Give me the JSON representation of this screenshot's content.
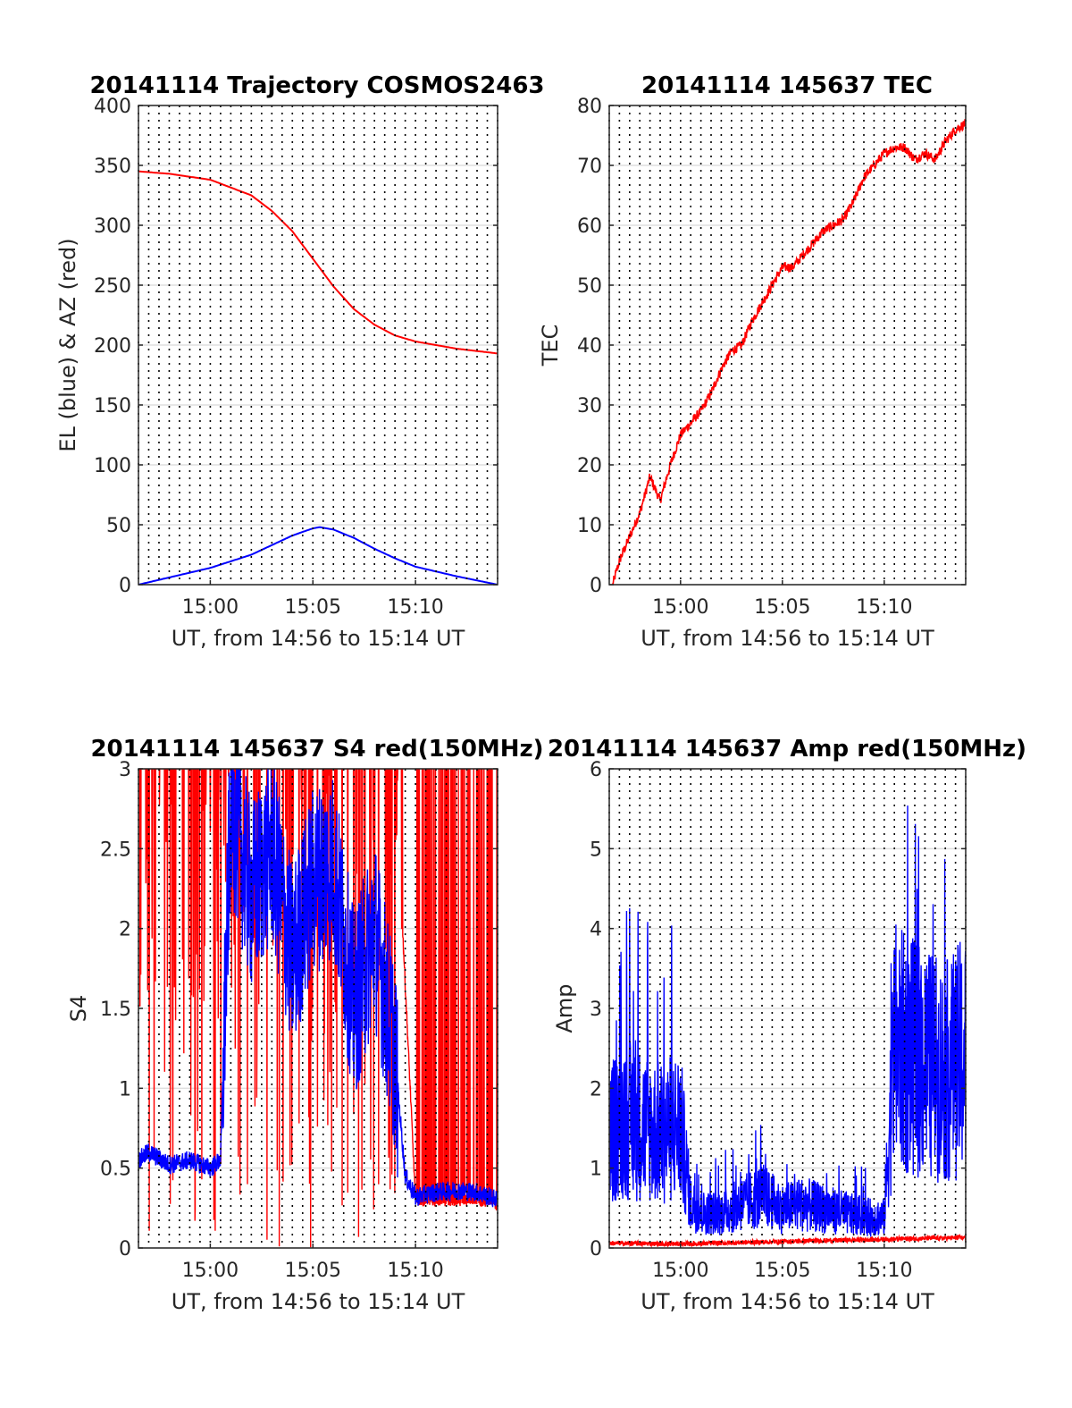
{
  "chart_data": [
    {
      "type": "line",
      "title": "20141114 Trajectory COSMOS2463",
      "xlabel": "UT, from 14:56 to 15:14 UT",
      "ylabel": "EL (blue) & AZ (red)",
      "xlim_minutes_after_14_56": [
        0.5,
        18
      ],
      "ylim": [
        0,
        400
      ],
      "xticks": [
        "15:00",
        "15:05",
        "15:10"
      ],
      "yticks": [
        "0",
        "50",
        "100",
        "150",
        "200",
        "250",
        "300",
        "350",
        "400"
      ],
      "grid": true,
      "series": [
        {
          "color": "#ff0000",
          "x": [
            "14:56:30",
            "14:58",
            "15:00",
            "15:02",
            "15:03",
            "15:04",
            "15:05",
            "15:06",
            "15:07",
            "15:08",
            "15:09",
            "15:10",
            "15:12",
            "15:14"
          ],
          "values": [
            345,
            343,
            338,
            325,
            312,
            295,
            272,
            249,
            230,
            217,
            208,
            203,
            197,
            193
          ]
        },
        {
          "color": "#0000ff",
          "x": [
            "14:56:30",
            "14:58",
            "15:00",
            "15:02",
            "15:03",
            "15:04",
            "15:05",
            "15:05:20",
            "15:06",
            "15:07",
            "15:08",
            "15:09",
            "15:10",
            "15:12",
            "15:14"
          ],
          "values": [
            0,
            6,
            14,
            25,
            33,
            41,
            47,
            48,
            46,
            39,
            30,
            22,
            15,
            7,
            0
          ]
        }
      ],
      "colors": {
        "az": "#ff0000",
        "el": "#0000ff"
      }
    },
    {
      "type": "line",
      "title": "20141114 145637 TEC",
      "xlabel": "UT, from 14:56 to 15:14 UT",
      "ylabel": "TEC",
      "xlim_minutes_after_14_56": [
        0.5,
        18
      ],
      "ylim": [
        0,
        80
      ],
      "xticks": [
        "15:00",
        "15:05",
        "15:10"
      ],
      "yticks": [
        "0",
        "10",
        "20",
        "30",
        "40",
        "50",
        "60",
        "70",
        "80"
      ],
      "grid": true,
      "series": [
        {
          "color": "#ff0000",
          "x": [
            "14:56:40",
            "14:57",
            "14:57:30",
            "14:58",
            "14:58:30",
            "14:59",
            "14:59:30",
            "15:00",
            "15:00:30",
            "15:01",
            "15:01:30",
            "15:02",
            "15:02:30",
            "15:03",
            "15:03:30",
            "15:04",
            "15:04:30",
            "15:05",
            "15:05:30",
            "15:06",
            "15:06:30",
            "15:07",
            "15:07:30",
            "15:08",
            "15:08:30",
            "15:09",
            "15:09:30",
            "15:10",
            "15:10:30",
            "15:11",
            "15:11:30",
            "15:12",
            "15:12:30",
            "15:13",
            "15:13:30",
            "15:14"
          ],
          "values": [
            0,
            4,
            8,
            12,
            18,
            14,
            20,
            25,
            27,
            29,
            32,
            36,
            39,
            40,
            44,
            47,
            50,
            53,
            53,
            55,
            57,
            59,
            60,
            61,
            64,
            68,
            70,
            72,
            73,
            73,
            71,
            72,
            71,
            74,
            76,
            77
          ]
        }
      ]
    },
    {
      "type": "line",
      "title": "20141114 145637 S4 red(150MHz)",
      "xlabel": "UT, from 14:56 to 15:14 UT",
      "ylabel": "S4",
      "xlim_minutes_after_14_56": [
        0.5,
        18
      ],
      "ylim": [
        0,
        3
      ],
      "xticks": [
        "15:00",
        "15:05",
        "15:10"
      ],
      "yticks": [
        "0",
        "0.5",
        "1",
        "1.5",
        "2",
        "2.5",
        "3"
      ],
      "grid": true,
      "series": [
        {
          "color": "#ff0000",
          "x": [
            "14:56:30",
            "14:58",
            "15:00",
            "15:01",
            "15:02",
            "15:03",
            "15:04",
            "15:05",
            "15:06",
            "15:07",
            "15:08",
            "15:09",
            "15:10",
            "15:11",
            "15:12",
            "15:13",
            "15:14"
          ],
          "values": [
            3,
            3,
            3,
            3,
            3,
            2,
            3,
            3,
            3,
            3,
            3,
            3,
            0.3,
            0.3,
            0.3,
            0.3,
            0.28
          ]
        },
        {
          "color": "#0000ff",
          "x": [
            "14:56:30",
            "14:57",
            "14:58",
            "14:59",
            "15:00",
            "15:00:30",
            "15:01",
            "15:02",
            "15:03",
            "15:04",
            "15:05",
            "15:06",
            "15:07",
            "15:08",
            "15:09",
            "15:09:30",
            "15:10",
            "15:11",
            "15:12",
            "15:13",
            "15:14"
          ],
          "values": [
            0.55,
            0.6,
            0.52,
            0.55,
            0.5,
            0.55,
            2.8,
            2.2,
            2.5,
            1.8,
            2.3,
            2.4,
            1.5,
            2.0,
            1.2,
            0.45,
            0.32,
            0.35,
            0.36,
            0.35,
            0.3
          ]
        }
      ]
    },
    {
      "type": "line",
      "title": "20141114 145637 Amp red(150MHz)",
      "xlabel": "UT, from 14:56 to 15:14 UT",
      "ylabel": "Amp",
      "xlim_minutes_after_14_56": [
        0.5,
        18
      ],
      "ylim": [
        0,
        6
      ],
      "xticks": [
        "15:00",
        "15:05",
        "15:10"
      ],
      "yticks": [
        "0",
        "1",
        "2",
        "3",
        "4",
        "5",
        "6"
      ],
      "grid": true,
      "series": [
        {
          "color": "#ff0000",
          "x": [
            "14:56:30",
            "15:00",
            "15:05",
            "15:10",
            "15:14"
          ],
          "values": [
            0.03,
            0.02,
            0.05,
            0.08,
            0.1
          ]
        },
        {
          "color": "#0000ff",
          "x": [
            "14:56:30",
            "14:57",
            "14:58",
            "14:59",
            "15:00",
            "15:00:30",
            "15:01",
            "15:02",
            "15:03",
            "15:04",
            "15:05",
            "15:06",
            "15:07",
            "15:08",
            "15:09",
            "15:10",
            "15:10:30",
            "15:11",
            "15:12",
            "15:13",
            "15:14"
          ],
          "values": [
            1.2,
            1.5,
            1.4,
            1.3,
            1.4,
            0.5,
            0.4,
            0.4,
            0.5,
            0.6,
            0.45,
            0.5,
            0.45,
            0.4,
            0.35,
            0.35,
            2.3,
            2.2,
            2.1,
            2.0,
            2.2
          ]
        }
      ]
    }
  ]
}
